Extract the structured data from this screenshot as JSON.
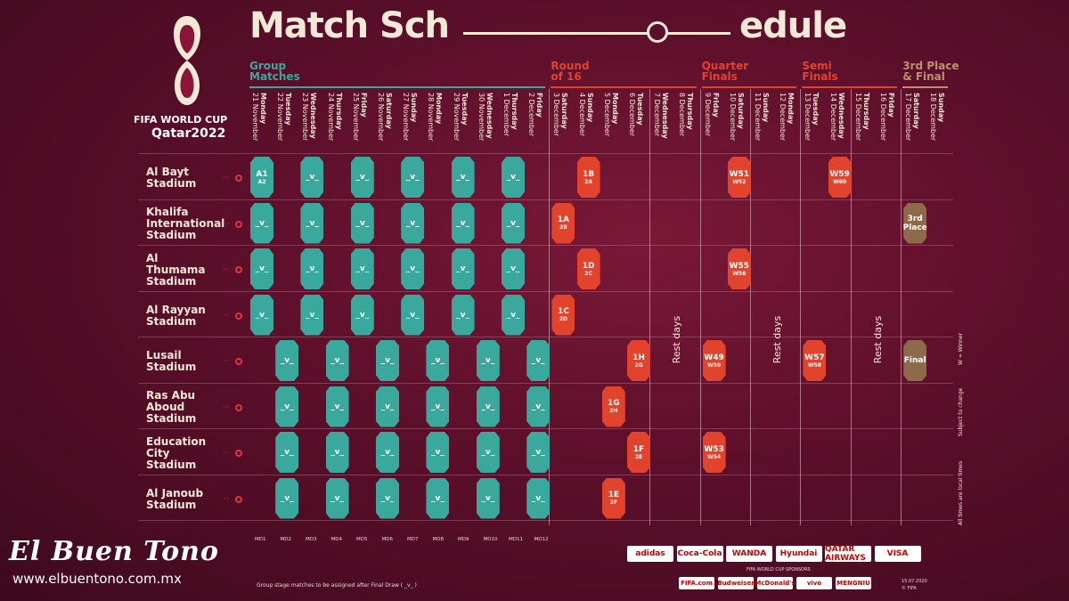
{
  "title_left": "Match Sch",
  "title_right": "edule",
  "logo": {
    "line1": "FIFA WORLD CUP",
    "line2": "Qatar2022"
  },
  "stages": [
    {
      "label1": "Group",
      "label2": "Matches",
      "color": "#3aa89c"
    },
    {
      "label1": "Round",
      "label2": "of 16",
      "color": "#e2432c"
    },
    {
      "label1": "Quarter",
      "label2": "Finals",
      "color": "#e2432c"
    },
    {
      "label1": "Semi",
      "label2": "Finals",
      "color": "#e2432c"
    },
    {
      "label1": "3rd Place",
      "label2": "& Final",
      "color": "#b9936a"
    }
  ],
  "dates": [
    {
      "day": "Monday",
      "date": "21 November"
    },
    {
      "day": "Tuesday",
      "date": "22 November"
    },
    {
      "day": "Wednesday",
      "date": "23 November"
    },
    {
      "day": "Thursday",
      "date": "24 November"
    },
    {
      "day": "Friday",
      "date": "25 November"
    },
    {
      "day": "Saturday",
      "date": "26 November"
    },
    {
      "day": "Sunday",
      "date": "27 November"
    },
    {
      "day": "Monday",
      "date": "28 November"
    },
    {
      "day": "Tuesday",
      "date": "29 November"
    },
    {
      "day": "Wednesday",
      "date": "30 November"
    },
    {
      "day": "Thursday",
      "date": "1 December"
    },
    {
      "day": "Friday",
      "date": "2 December"
    },
    {
      "day": "Saturday",
      "date": "3 December"
    },
    {
      "day": "Sunday",
      "date": "4 December"
    },
    {
      "day": "Monday",
      "date": "5 December"
    },
    {
      "day": "Tuesday",
      "date": "6 December"
    },
    {
      "day": "Wednesday",
      "date": "7 December"
    },
    {
      "day": "Thursday",
      "date": "8 December"
    },
    {
      "day": "Friday",
      "date": "9 December"
    },
    {
      "day": "Saturday",
      "date": "10 December"
    },
    {
      "day": "Sunday",
      "date": "11 December"
    },
    {
      "day": "Monday",
      "date": "12 December"
    },
    {
      "day": "Tuesday",
      "date": "13 December"
    },
    {
      "day": "Wednesday",
      "date": "14 December"
    },
    {
      "day": "Thursday",
      "date": "15 December"
    },
    {
      "day": "Friday",
      "date": "16 December"
    },
    {
      "day": "Saturday",
      "date": "17 December"
    },
    {
      "day": "Sunday",
      "date": "18 December"
    }
  ],
  "stadiums": [
    {
      "l1": "Al Bayt",
      "l2": "Stadium",
      "l3": ""
    },
    {
      "l1": "Khalifa",
      "l2": "International",
      "l3": "Stadium"
    },
    {
      "l1": "Al",
      "l2": "Thumama",
      "l3": "Stadium"
    },
    {
      "l1": "Al Rayyan",
      "l2": "Stadium",
      "l3": ""
    },
    {
      "l1": "Lusail",
      "l2": "Stadium",
      "l3": ""
    },
    {
      "l1": "Ras Abu",
      "l2": "Aboud",
      "l3": "Stadium"
    },
    {
      "l1": "Education",
      "l2": "City",
      "l3": "Stadium"
    },
    {
      "l1": "Al Janoub",
      "l2": "Stadium",
      "l3": ""
    }
  ],
  "rest_days": "Rest days",
  "matches": {
    "group_placeholder": "_v_",
    "opener": {
      "a": "A1",
      "b": "A2"
    },
    "knockout": [
      {
        "row": 0,
        "col": 13,
        "a": "1B",
        "b": "2A"
      },
      {
        "row": 1,
        "col": 12,
        "a": "1A",
        "b": "2B"
      },
      {
        "row": 2,
        "col": 13,
        "a": "1D",
        "b": "2C"
      },
      {
        "row": 3,
        "col": 12,
        "a": "1C",
        "b": "2D"
      },
      {
        "row": 4,
        "col": 15,
        "a": "1H",
        "b": "2G"
      },
      {
        "row": 5,
        "col": 14,
        "a": "1G",
        "b": "2H"
      },
      {
        "row": 6,
        "col": 15,
        "a": "1F",
        "b": "2E"
      },
      {
        "row": 7,
        "col": 14,
        "a": "1E",
        "b": "2F"
      },
      {
        "row": 0,
        "col": 19,
        "a": "W51",
        "b": "W52"
      },
      {
        "row": 2,
        "col": 19,
        "a": "W55",
        "b": "W56"
      },
      {
        "row": 4,
        "col": 18,
        "a": "W49",
        "b": "W50"
      },
      {
        "row": 6,
        "col": 18,
        "a": "W53",
        "b": "W54"
      },
      {
        "row": 0,
        "col": 23,
        "a": "W59",
        "b": "W60"
      },
      {
        "row": 4,
        "col": 22,
        "a": "W57",
        "b": "W58"
      }
    ],
    "third": "3rd Place",
    "final": "Final"
  },
  "side_notes": [
    "W = Winner",
    "Subject to change",
    "All times are local times"
  ],
  "matchdays": [
    "MD1",
    "MD2",
    "MD3",
    "MD4",
    "MD5",
    "MD6",
    "MD7",
    "MD8",
    "MD9",
    "MD10",
    "MD11",
    "MD12"
  ],
  "footnote": "Group stage matches to be assigned after Final Draw ( _v_ )",
  "sponsors_top": [
    "adidas",
    "Coca-Cola",
    "WANDA",
    "Hyundai",
    "QATAR AIRWAYS",
    "VISA"
  ],
  "sponsors_label": "FIFA WORLD CUP SPONSORS",
  "sponsors_bottom": [
    "FIFA.com",
    "Budweiser",
    "McDonald's",
    "vivo",
    "MENGNIU"
  ],
  "date_stamp": "15.07.2020",
  "copyright": "© FIFA",
  "brand": "El Buen Tono",
  "brand_url": "www.elbuentono.com.mx",
  "colors": {
    "teal": "#3aa89c",
    "red": "#e2432c",
    "gold": "#8c6a4a",
    "bg": "#5c0f2a"
  }
}
